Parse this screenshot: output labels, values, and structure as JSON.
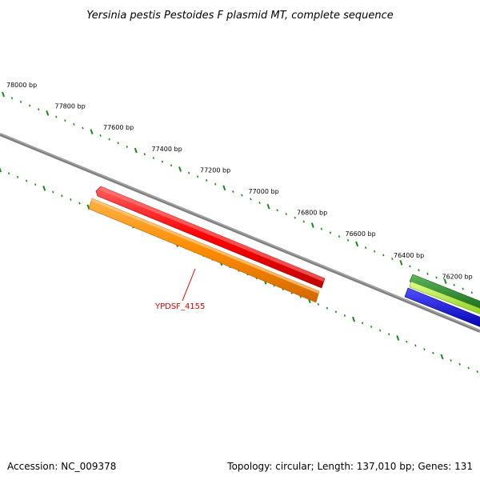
{
  "title": "Yersinia pestis Pestoides F plasmid MT, complete sequence",
  "accession_text": "Accession: NC_009378",
  "summary_text": "Topology: circular; Length: 137,010 bp; Genes: 131",
  "ruler": {
    "labels": [
      "78000 bp",
      "77800 bp",
      "77600 bp",
      "77400 bp",
      "77200 bp",
      "77000 bp",
      "76800 bp",
      "76600 bp",
      "76400 bp",
      "76200 bp"
    ]
  },
  "gene_label": "YPDSF_4155",
  "colors": {
    "backbone": "#808080",
    "tick": "#1a8a1a",
    "gene_red": "#ff0000",
    "gene_orange": "#ff8c00",
    "gene_dark_green": "#228b22",
    "gene_light_green": "#adff2f",
    "gene_blue": "#0000ff",
    "label": "#e00000"
  }
}
